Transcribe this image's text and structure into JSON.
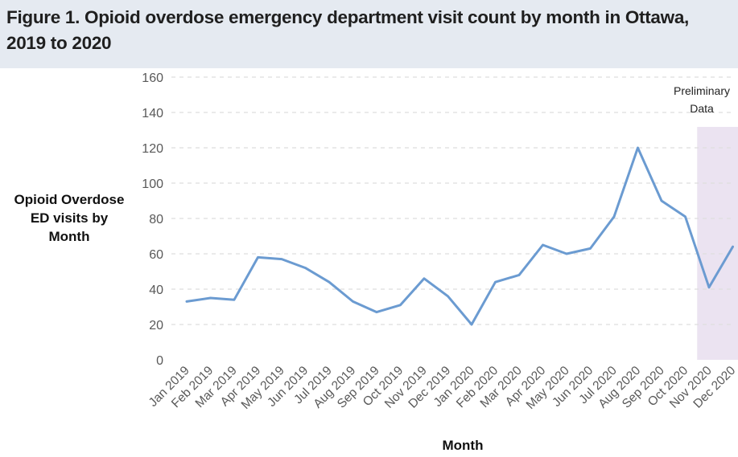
{
  "title": "Figure 1. Opioid overdose emergency department visit count by month in Ottawa, 2019 to 2020",
  "chart_data": {
    "type": "line",
    "ylabel": "Opioid Overdose ED visits by Month",
    "xlabel": "Month",
    "ylim": [
      0,
      160
    ],
    "yticks": [
      0,
      20,
      40,
      60,
      80,
      100,
      120,
      140,
      160
    ],
    "grid": "horizontal-dashed",
    "categories": [
      "Jan 2019",
      "Feb 2019",
      "Mar 2019",
      "Apr 2019",
      "May 2019",
      "Jun 2019",
      "Jul 2019",
      "Aug 2019",
      "Sep 2019",
      "Oct 2019",
      "Nov 2019",
      "Dec 2019",
      "Jan 2020",
      "Feb 2020",
      "Mar 2020",
      "Apr 2020",
      "May 2020",
      "Jun 2020",
      "Jul 2020",
      "Aug 2020",
      "Sep 2020",
      "Oct 2020",
      "Nov 2020",
      "Dec 2020"
    ],
    "series": [
      {
        "values": [
          33,
          35,
          34,
          58,
          57,
          52,
          44,
          33,
          27,
          31,
          46,
          36,
          20,
          44,
          48,
          65,
          60,
          63,
          81,
          120,
          90,
          81,
          41,
          64
        ],
        "color": "#6b9bd1"
      }
    ],
    "shaded_region": {
      "label": "Preliminary Data",
      "from": "Nov 2020",
      "to": "Dec 2020",
      "color": "#ebe3f1"
    }
  }
}
